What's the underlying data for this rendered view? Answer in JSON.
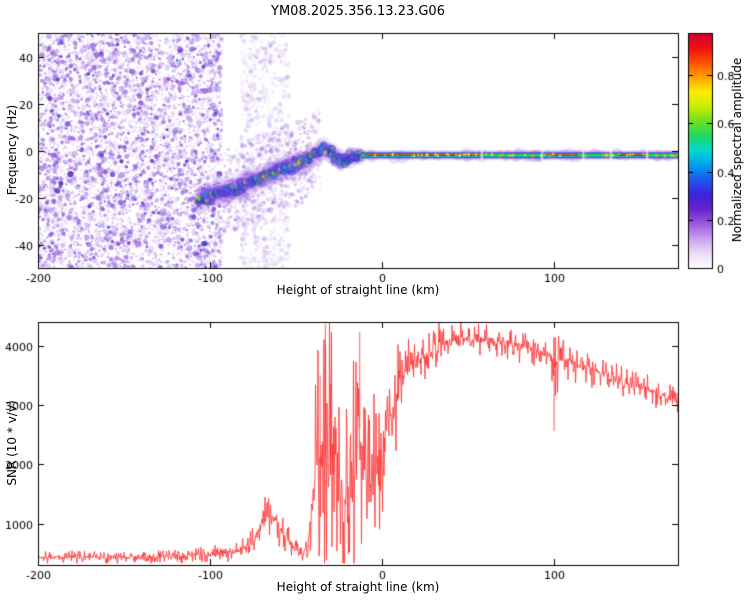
{
  "title": "YM08.2025.356.13.23.G06",
  "chart_data": [
    {
      "type": "heatmap",
      "title": "YM08.2025.356.13.23.G06",
      "xlabel": "Height of straight line (km)",
      "ylabel": "Frequency (Hz)",
      "xlim": [
        -200,
        172
      ],
      "ylim": [
        -50,
        50
      ],
      "xticks": [
        -200,
        -100,
        0,
        100
      ],
      "yticks": [
        -40,
        -20,
        0,
        20,
        40
      ],
      "colorbar": {
        "label": "Normalized spectral amplitude",
        "ticks": [
          0,
          0.2,
          0.4,
          0.6,
          0.8
        ],
        "vmax": 0.975,
        "colormap": [
          "#ffffff",
          "#ecdcf6",
          "#c9a0ec",
          "#9b59e0",
          "#6a22cc",
          "#3a22dd",
          "#2255ee",
          "#00a0f0",
          "#00d8d0",
          "#20d860",
          "#70e020",
          "#c8ee00",
          "#ffee00",
          "#ffa000",
          "#ff5000",
          "#ee1010",
          "#d00030"
        ]
      },
      "noise_colors": [
        "#7b2fd4",
        "#9b59e8",
        "#5a18b8",
        "#b98fe8",
        "#4432d6",
        "#8844dd"
      ],
      "noise_region": {
        "x_start": -200,
        "x_end": -93
      },
      "faint_band": {
        "x_center": -68,
        "width": 14
      },
      "mid_noise": {
        "x_start": -93,
        "x_end": -35,
        "spread": 18
      },
      "trace": {
        "points": [
          [
            -107,
            -21
          ],
          [
            -98,
            -19
          ],
          [
            -88,
            -17
          ],
          [
            -78,
            -14
          ],
          [
            -68,
            -11
          ],
          [
            -58,
            -8
          ],
          [
            -50,
            -6
          ],
          [
            -44,
            -4
          ],
          [
            -38,
            -1
          ],
          [
            -33,
            1
          ],
          [
            -29,
            -1
          ],
          [
            -25,
            -4
          ],
          [
            -21,
            -5
          ],
          [
            -17,
            -2
          ],
          [
            -14,
            -3
          ],
          [
            -12,
            -2
          ]
        ],
        "flat_start": -12,
        "flat_value": -2,
        "red_segments": [
          [
            -10,
            57
          ],
          [
            96,
            114
          ],
          [
            137,
            153
          ]
        ],
        "gaps": [
          58,
          93,
          117,
          133,
          154
        ]
      }
    },
    {
      "type": "line",
      "xlabel": "Height of straight line (km)",
      "ylabel": "SNR (10 * v/v)",
      "xlim": [
        -200,
        172
      ],
      "ylim": [
        300,
        4400
      ],
      "xticks": [
        -200,
        -100,
        0,
        100
      ],
      "yticks": [
        1000,
        2000,
        3000,
        4000
      ],
      "series": [
        {
          "name": "SNR",
          "color": "#fb3030",
          "envelope": [
            [
              -200,
              430,
              80
            ],
            [
              -150,
              430,
              80
            ],
            [
              -120,
              445,
              85
            ],
            [
              -100,
              480,
              95
            ],
            [
              -85,
              530,
              110
            ],
            [
              -75,
              680,
              160
            ],
            [
              -68,
              1150,
              260
            ],
            [
              -62,
              1060,
              290
            ],
            [
              -55,
              720,
              190
            ],
            [
              -48,
              490,
              100
            ],
            [
              -43,
              620,
              220
            ],
            [
              -38,
              1900,
              1500
            ],
            [
              -32,
              2200,
              1900
            ],
            [
              -27,
              1800,
              1400
            ],
            [
              -22,
              1300,
              850
            ],
            [
              -18,
              1500,
              1200
            ],
            [
              -13,
              2600,
              1700
            ],
            [
              -9,
              1500,
              1000
            ],
            [
              -5,
              1800,
              900
            ],
            [
              0,
              2300,
              800
            ],
            [
              5,
              2800,
              700
            ],
            [
              10,
              3300,
              520
            ],
            [
              15,
              3600,
              360
            ],
            [
              20,
              3760,
              300
            ],
            [
              30,
              3950,
              260
            ],
            [
              40,
              4060,
              210
            ],
            [
              50,
              4110,
              190
            ],
            [
              60,
              4090,
              190
            ],
            [
              70,
              4050,
              190
            ],
            [
              80,
              3990,
              180
            ],
            [
              90,
              3900,
              180
            ],
            [
              98,
              3850,
              210
            ],
            [
              100,
              3600,
              700
            ],
            [
              103,
              3770,
              250
            ],
            [
              110,
              3710,
              190
            ],
            [
              120,
              3610,
              180
            ],
            [
              130,
              3510,
              170
            ],
            [
              140,
              3410,
              170
            ],
            [
              150,
              3310,
              160
            ],
            [
              160,
              3190,
              160
            ],
            [
              172,
              3070,
              160
            ]
          ],
          "spikes": [
            [
              -36,
              3500
            ],
            [
              -33,
              4360
            ],
            [
              -30,
              3350
            ],
            [
              -13,
              4230
            ],
            [
              100,
              2560
            ],
            [
              100.8,
              4140
            ]
          ]
        }
      ]
    }
  ]
}
